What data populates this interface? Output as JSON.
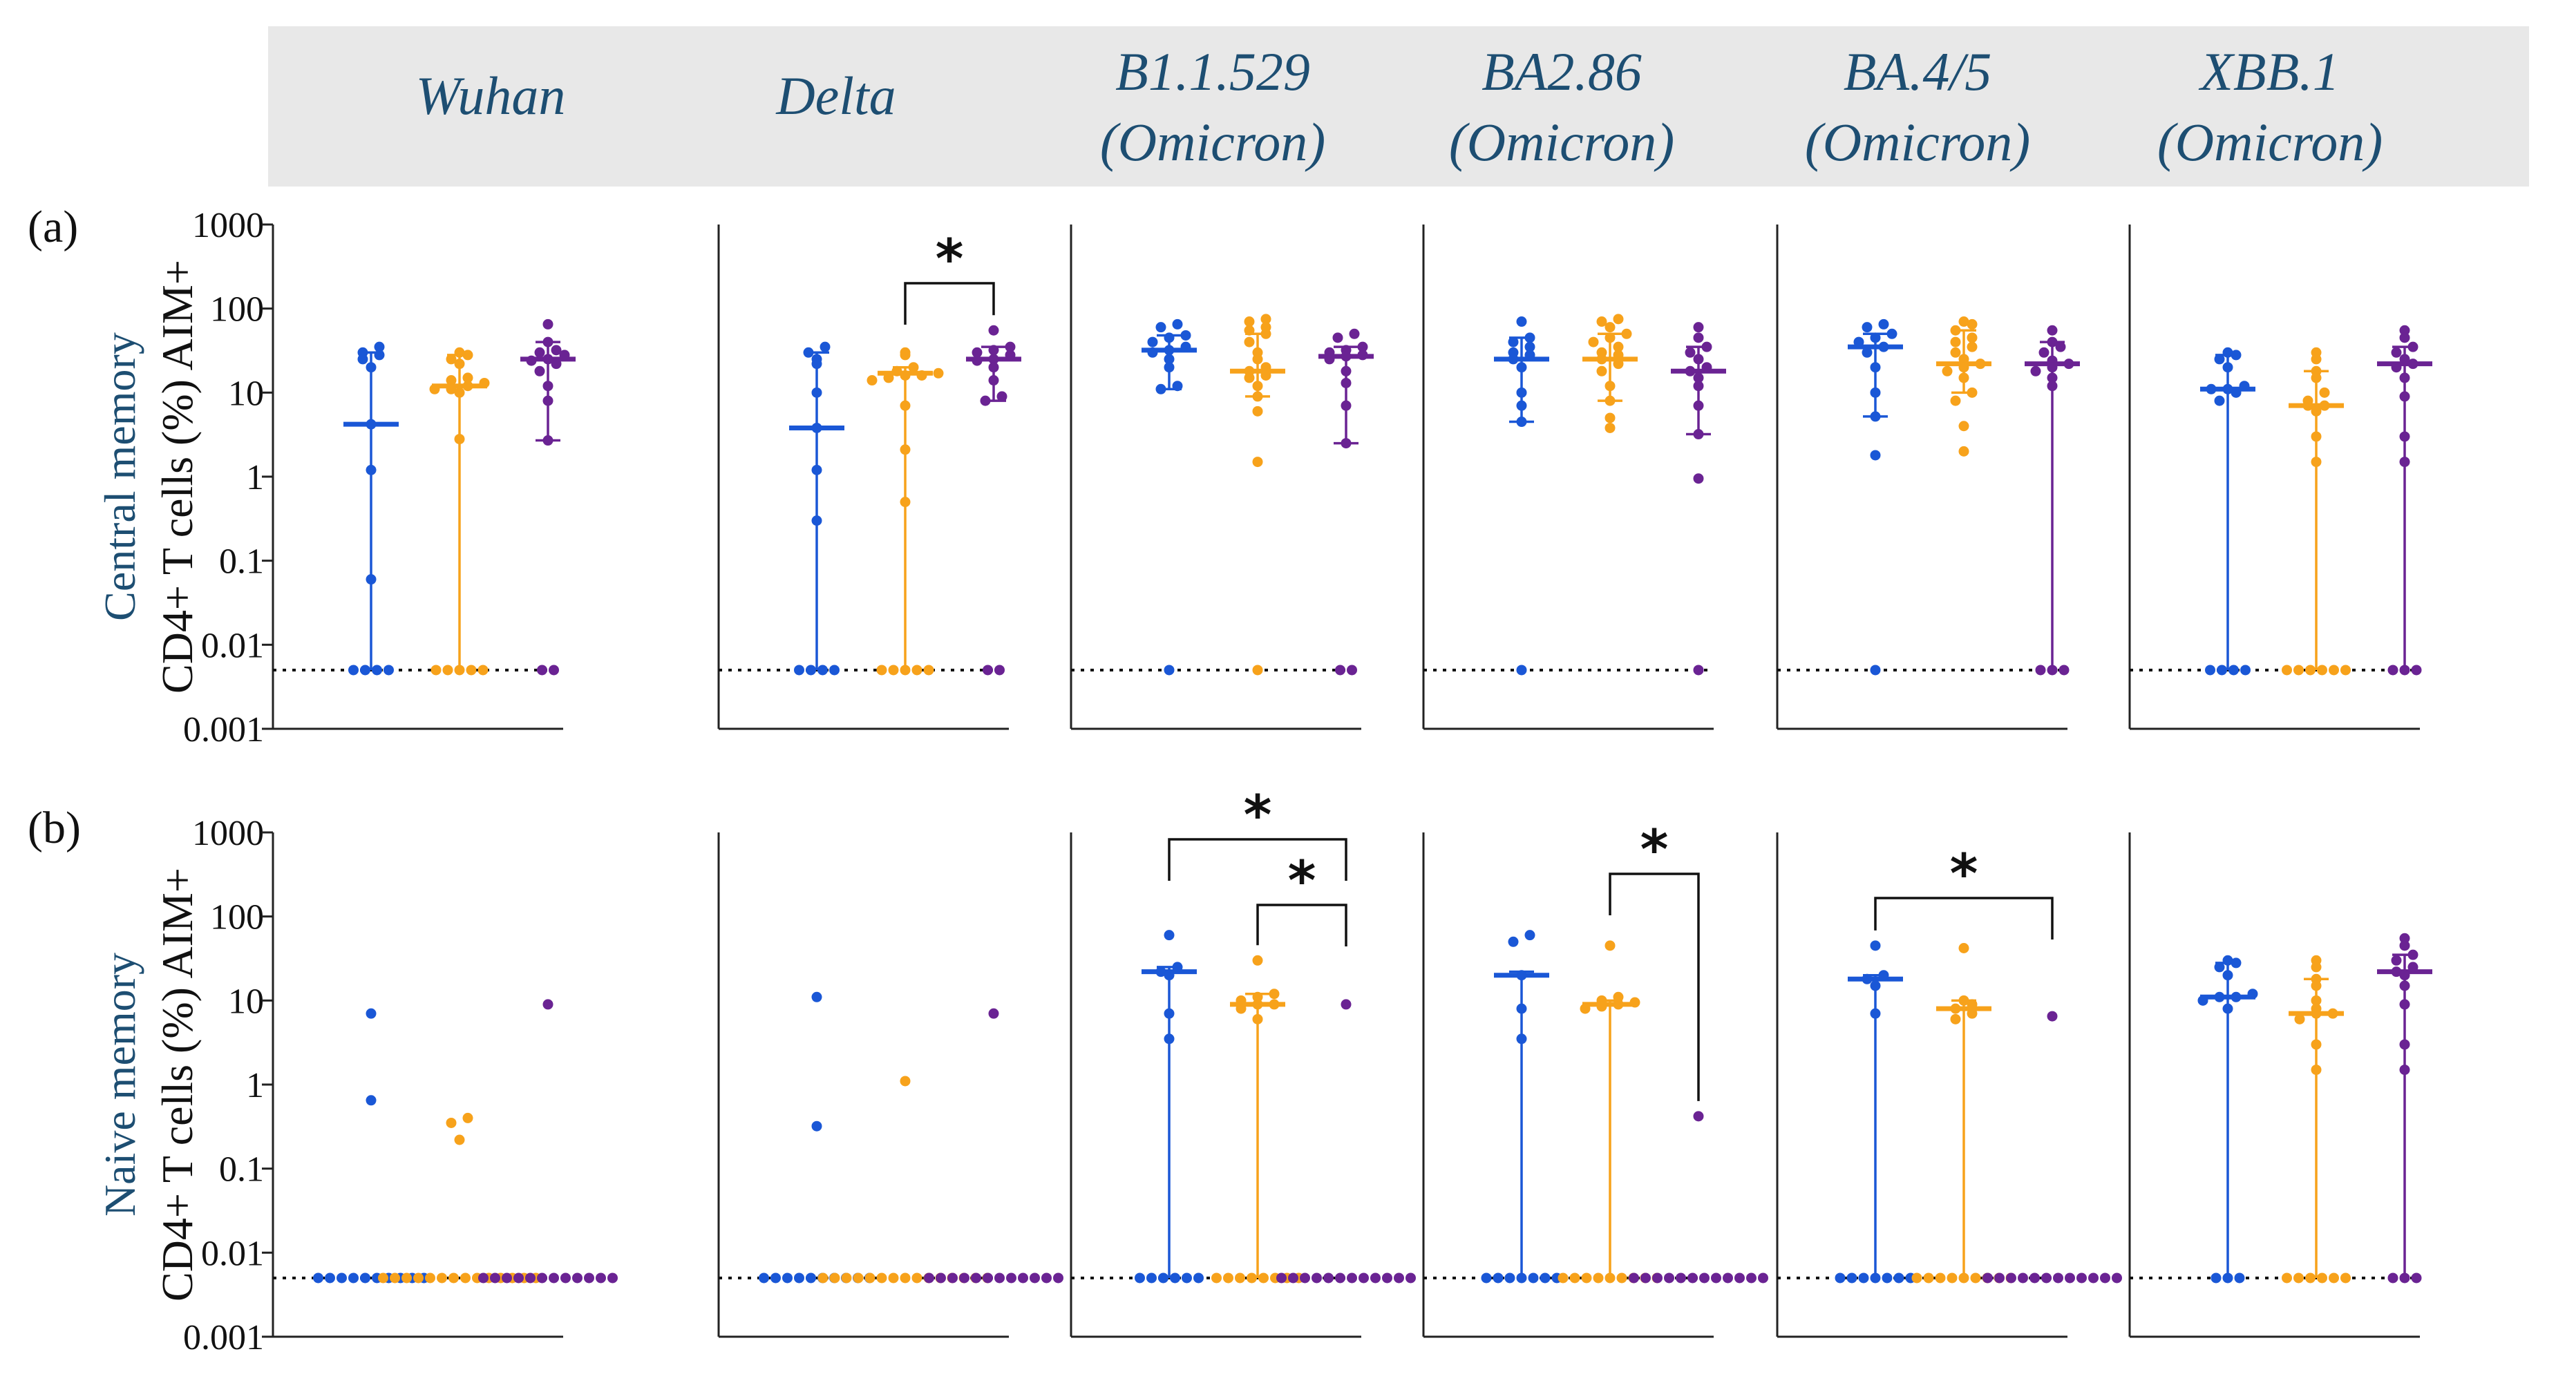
{
  "header": {
    "bg_color": "#e8e8e8",
    "text_color": "#1d4e72",
    "variants": [
      {
        "line1": "Wuhan",
        "line2": ""
      },
      {
        "line1": "Delta",
        "line2": ""
      },
      {
        "line1": "B1.1.529",
        "line2": "(Omicron)"
      },
      {
        "line1": "BA2.86",
        "line2": "(Omicron)"
      },
      {
        "line1": "BA.4/5",
        "line2": "(Omicron)"
      },
      {
        "line1": "XBB.1",
        "line2": "(Omicron)"
      }
    ]
  },
  "colors": {
    "blue": "#1a57d6",
    "orange": "#f7a21b",
    "purple": "#6a2393",
    "axis": "#222222",
    "label_blue": "#1d4e72"
  },
  "rows": [
    {
      "tag": "(a)",
      "subset_label": "Central memory",
      "ylabel": "CD4+ T cells (%) AIM+"
    },
    {
      "tag": "(b)",
      "subset_label": "Naive memory",
      "ylabel": "CD4+ T cells (%)  AIM+"
    }
  ],
  "y_ticks": [
    {
      "v": 1000,
      "label": "1000"
    },
    {
      "v": 100,
      "label": "100"
    },
    {
      "v": 10,
      "label": "10"
    },
    {
      "v": 1,
      "label": "1"
    },
    {
      "v": 0.1,
      "label": "0.1"
    },
    {
      "v": 0.01,
      "label": "0.01"
    },
    {
      "v": 0.001,
      "label": "0.001"
    }
  ],
  "significance_symbol": "*",
  "chart_data": [
    {
      "type": "scatter",
      "row": "a",
      "variant": "Wuhan",
      "yscale": "log",
      "ylim": [
        0.001,
        1000
      ],
      "detection_limit": 0.005,
      "groups": [
        {
          "color": "blue",
          "median": 4.2,
          "range": [
            0.005,
            30
          ],
          "points": [
            0.005,
            0.005,
            0.005,
            0.005,
            0.06,
            1.2,
            4.2,
            20,
            25,
            28,
            30,
            35
          ]
        },
        {
          "color": "orange",
          "median": 12,
          "range": [
            0.005,
            28
          ],
          "points": [
            0.005,
            0.005,
            0.005,
            0.005,
            0.005,
            2.8,
            10,
            11,
            11,
            12,
            13,
            14,
            15,
            22,
            25,
            28,
            30
          ]
        },
        {
          "color": "purple",
          "median": 25,
          "range": [
            2.7,
            40
          ],
          "points": [
            0.005,
            0.005,
            2.7,
            8,
            12,
            18,
            22,
            24,
            25,
            28,
            30,
            32,
            40,
            65
          ]
        }
      ],
      "comparisons": []
    },
    {
      "type": "scatter",
      "row": "a",
      "variant": "Delta",
      "yscale": "log",
      "ylim": [
        0.001,
        1000
      ],
      "detection_limit": 0.005,
      "groups": [
        {
          "color": "blue",
          "median": 3.8,
          "range": [
            0.005,
            30
          ],
          "points": [
            0.005,
            0.005,
            0.005,
            0.005,
            0.3,
            1.2,
            3.8,
            10,
            22,
            25,
            30,
            35
          ]
        },
        {
          "color": "orange",
          "median": 17,
          "range": [
            0.005,
            20
          ],
          "points": [
            0.005,
            0.005,
            0.005,
            0.005,
            0.005,
            0.5,
            2.1,
            7,
            14,
            15,
            16,
            16,
            17,
            18,
            20,
            28,
            30
          ]
        },
        {
          "color": "purple",
          "median": 25,
          "range": [
            8,
            35
          ],
          "points": [
            0.005,
            0.005,
            8,
            9,
            14,
            20,
            24,
            25,
            28,
            30,
            32,
            35,
            55
          ]
        }
      ],
      "comparisons": [
        {
          "from": 1,
          "to": 2,
          "level": 1
        }
      ]
    },
    {
      "type": "scatter",
      "row": "a",
      "variant": "B1.1.529 (Omicron)",
      "yscale": "log",
      "ylim": [
        0.001,
        1000
      ],
      "detection_limit": 0.005,
      "groups": [
        {
          "color": "blue",
          "median": 32,
          "range": [
            11,
            48
          ],
          "points": [
            0.005,
            11,
            12,
            20,
            25,
            30,
            32,
            35,
            40,
            45,
            48,
            60,
            65
          ]
        },
        {
          "color": "orange",
          "median": 18,
          "range": [
            9,
            50
          ],
          "points": [
            0.005,
            1.5,
            6,
            9,
            12,
            15,
            16,
            18,
            20,
            25,
            30,
            40,
            50,
            55,
            60,
            70,
            75
          ]
        },
        {
          "color": "purple",
          "median": 27,
          "range": [
            2.5,
            35
          ],
          "points": [
            0.005,
            0.005,
            2.5,
            7,
            13,
            18,
            25,
            27,
            28,
            30,
            32,
            35,
            45,
            50
          ]
        }
      ],
      "comparisons": []
    },
    {
      "type": "scatter",
      "row": "a",
      "variant": "BA2.86 (Omicron)",
      "yscale": "log",
      "ylim": [
        0.001,
        1000
      ],
      "detection_limit": 0.005,
      "groups": [
        {
          "color": "blue",
          "median": 25,
          "range": [
            4.5,
            45
          ],
          "points": [
            0.005,
            4.5,
            7,
            10,
            20,
            25,
            28,
            30,
            35,
            40,
            45,
            70
          ]
        },
        {
          "color": "orange",
          "median": 25,
          "range": [
            8,
            50
          ],
          "points": [
            3.8,
            5,
            8,
            12,
            18,
            22,
            25,
            28,
            30,
            35,
            40,
            45,
            50,
            60,
            70,
            75
          ]
        },
        {
          "color": "purple",
          "median": 18,
          "range": [
            3.2,
            35
          ],
          "points": [
            0.005,
            0.95,
            3.2,
            7,
            12,
            15,
            18,
            20,
            25,
            30,
            35,
            45,
            60
          ]
        }
      ],
      "comparisons": []
    },
    {
      "type": "scatter",
      "row": "a",
      "variant": "BA.4/5 (Omicron)",
      "yscale": "log",
      "ylim": [
        0.001,
        1000
      ],
      "detection_limit": 0.005,
      "groups": [
        {
          "color": "blue",
          "median": 35,
          "range": [
            5.2,
            50
          ],
          "points": [
            0.005,
            1.8,
            5.2,
            10,
            20,
            30,
            35,
            40,
            45,
            50,
            60,
            65
          ]
        },
        {
          "color": "orange",
          "median": 22,
          "range": [
            10,
            55
          ],
          "points": [
            2,
            4,
            8,
            10,
            15,
            18,
            20,
            22,
            25,
            30,
            35,
            40,
            45,
            55,
            65,
            70
          ]
        },
        {
          "color": "purple",
          "median": 22,
          "range": [
            0.005,
            40
          ],
          "points": [
            0.005,
            0.005,
            0.005,
            12,
            15,
            18,
            20,
            22,
            24,
            30,
            35,
            40,
            55
          ]
        }
      ],
      "comparisons": []
    },
    {
      "type": "scatter",
      "row": "a",
      "variant": "XBB.1 (Omicron)",
      "yscale": "log",
      "ylim": [
        0.001,
        1000
      ],
      "detection_limit": 0.005,
      "groups": [
        {
          "color": "blue",
          "median": 11,
          "range": [
            0.005,
            28
          ],
          "points": [
            0.005,
            0.005,
            0.005,
            0.005,
            8,
            10,
            11,
            11,
            12,
            20,
            25,
            28,
            30
          ]
        },
        {
          "color": "orange",
          "median": 7,
          "range": [
            0.005,
            18
          ],
          "points": [
            0.005,
            0.005,
            0.005,
            0.005,
            0.005,
            0.005,
            1.5,
            3,
            6,
            7,
            7,
            8,
            10,
            15,
            18,
            25,
            30
          ]
        },
        {
          "color": "purple",
          "median": 22,
          "range": [
            0.005,
            35
          ],
          "points": [
            0.005,
            0.005,
            0.005,
            1.5,
            3,
            9,
            15,
            20,
            22,
            25,
            30,
            35,
            45,
            55
          ]
        }
      ],
      "comparisons": []
    },
    {
      "type": "scatter",
      "row": "b",
      "variant": "Wuhan",
      "yscale": "log",
      "ylim": [
        0.001,
        1000
      ],
      "detection_limit": 0.005,
      "groups": [
        {
          "color": "blue",
          "median": null,
          "range": null,
          "points": [
            0.005,
            0.005,
            0.005,
            0.005,
            0.005,
            0.005,
            0.005,
            0.005,
            0.005,
            0.005,
            0.65,
            7
          ]
        },
        {
          "color": "orange",
          "median": null,
          "range": null,
          "points": [
            0.005,
            0.005,
            0.005,
            0.005,
            0.005,
            0.005,
            0.005,
            0.005,
            0.005,
            0.005,
            0.005,
            0.005,
            0.005,
            0.005,
            0.22,
            0.35,
            0.4
          ]
        },
        {
          "color": "purple",
          "median": null,
          "range": null,
          "points": [
            0.005,
            0.005,
            0.005,
            0.005,
            0.005,
            0.005,
            0.005,
            0.005,
            0.005,
            0.005,
            0.005,
            0.005,
            9
          ]
        }
      ],
      "comparisons": []
    },
    {
      "type": "scatter",
      "row": "b",
      "variant": "Delta",
      "yscale": "log",
      "ylim": [
        0.001,
        1000
      ],
      "detection_limit": 0.005,
      "groups": [
        {
          "color": "blue",
          "median": null,
          "range": null,
          "points": [
            0.005,
            0.005,
            0.005,
            0.005,
            0.005,
            0.005,
            0.005,
            0.005,
            0.005,
            0.005,
            0.32,
            11
          ]
        },
        {
          "color": "orange",
          "median": null,
          "range": null,
          "points": [
            0.005,
            0.005,
            0.005,
            0.005,
            0.005,
            0.005,
            0.005,
            0.005,
            0.005,
            0.005,
            0.005,
            0.005,
            0.005,
            0.005,
            0.005,
            1.1
          ]
        },
        {
          "color": "purple",
          "median": null,
          "range": null,
          "points": [
            0.005,
            0.005,
            0.005,
            0.005,
            0.005,
            0.005,
            0.005,
            0.005,
            0.005,
            0.005,
            0.005,
            0.005,
            7
          ]
        }
      ],
      "comparisons": []
    },
    {
      "type": "scatter",
      "row": "b",
      "variant": "B1.1.529 (Omicron)",
      "yscale": "log",
      "ylim": [
        0.001,
        1000
      ],
      "detection_limit": 0.005,
      "groups": [
        {
          "color": "blue",
          "median": 22,
          "range": [
            0.005,
            25
          ],
          "points": [
            0.005,
            0.005,
            0.005,
            0.005,
            0.005,
            0.005,
            3.5,
            7,
            20,
            22,
            25,
            60
          ]
        },
        {
          "color": "orange",
          "median": 9,
          "range": [
            0.005,
            12
          ],
          "points": [
            0.005,
            0.005,
            0.005,
            0.005,
            0.005,
            0.005,
            0.005,
            0.005,
            6,
            8,
            9,
            9,
            10,
            11,
            12,
            30
          ]
        },
        {
          "color": "purple",
          "median": null,
          "range": null,
          "points": [
            0.005,
            0.005,
            0.005,
            0.005,
            0.005,
            0.005,
            0.005,
            0.005,
            0.005,
            0.005,
            0.005,
            0.005,
            9
          ]
        }
      ],
      "comparisons": [
        {
          "from": 0,
          "to": 2,
          "level": 2
        },
        {
          "from": 1,
          "to": 2,
          "level": 1
        }
      ]
    },
    {
      "type": "scatter",
      "row": "b",
      "variant": "BA2.86 (Omicron)",
      "yscale": "log",
      "ylim": [
        0.001,
        1000
      ],
      "detection_limit": 0.005,
      "groups": [
        {
          "color": "blue",
          "median": 20,
          "range": [
            0.005,
            22
          ],
          "points": [
            0.005,
            0.005,
            0.005,
            0.005,
            0.005,
            0.005,
            0.005,
            3.5,
            8,
            20,
            50,
            60
          ]
        },
        {
          "color": "orange",
          "median": 9,
          "range": [
            0.005,
            10
          ],
          "points": [
            0.005,
            0.005,
            0.005,
            0.005,
            0.005,
            0.005,
            0.005,
            0.005,
            0.005,
            8,
            8.5,
            9,
            9.5,
            10,
            11,
            45
          ]
        },
        {
          "color": "purple",
          "median": null,
          "range": null,
          "points": [
            0.005,
            0.005,
            0.005,
            0.005,
            0.005,
            0.005,
            0.005,
            0.005,
            0.005,
            0.005,
            0.005,
            0.005,
            0.42
          ]
        }
      ],
      "comparisons": [
        {
          "from": 1,
          "to": 2,
          "level": 1
        }
      ]
    },
    {
      "type": "scatter",
      "row": "b",
      "variant": "BA.4/5 (Omicron)",
      "yscale": "log",
      "ylim": [
        0.001,
        1000
      ],
      "detection_limit": 0.005,
      "groups": [
        {
          "color": "blue",
          "median": 18,
          "range": [
            0.005,
            20
          ],
          "points": [
            0.005,
            0.005,
            0.005,
            0.005,
            0.005,
            0.005,
            0.005,
            7,
            15,
            18,
            20,
            45
          ]
        },
        {
          "color": "orange",
          "median": 8,
          "range": [
            0.005,
            10
          ],
          "points": [
            0.005,
            0.005,
            0.005,
            0.005,
            0.005,
            0.005,
            0.005,
            0.005,
            0.005,
            6,
            7,
            8,
            9,
            10,
            42
          ]
        },
        {
          "color": "purple",
          "median": null,
          "range": null,
          "points": [
            0.005,
            0.005,
            0.005,
            0.005,
            0.005,
            0.005,
            0.005,
            0.005,
            0.005,
            0.005,
            0.005,
            0.005,
            6.5
          ]
        }
      ],
      "comparisons": [
        {
          "from": 0,
          "to": 2,
          "level": 1
        }
      ]
    },
    {
      "type": "scatter",
      "row": "b",
      "variant": "XBB.1 (Omicron)",
      "yscale": "log",
      "ylim": [
        0.001,
        1000
      ],
      "detection_limit": 0.005,
      "groups": [
        {
          "color": "blue",
          "median": 11,
          "range": [
            0.005,
            28
          ],
          "points": [
            0.005,
            0.005,
            0.005,
            8,
            10,
            11,
            11,
            12,
            20,
            25,
            28,
            30
          ]
        },
        {
          "color": "orange",
          "median": 7,
          "range": [
            0.005,
            18
          ],
          "points": [
            0.005,
            0.005,
            0.005,
            0.005,
            0.005,
            0.005,
            1.5,
            3,
            6,
            7,
            7,
            8,
            10,
            15,
            18,
            25,
            30
          ]
        },
        {
          "color": "purple",
          "median": 22,
          "range": [
            0.005,
            35
          ],
          "points": [
            0.005,
            0.005,
            0.005,
            1.5,
            3,
            9,
            15,
            20,
            22,
            25,
            30,
            35,
            45,
            55
          ]
        }
      ],
      "comparisons": []
    }
  ]
}
